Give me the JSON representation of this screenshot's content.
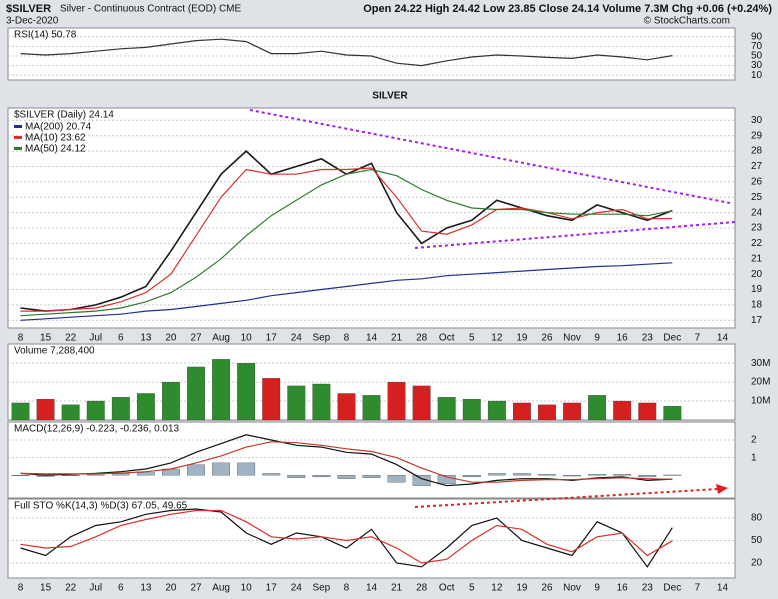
{
  "header": {
    "symbol": "$SILVER",
    "title": "Silver - Continuous Contract (EOD) CME",
    "date": "3-Dec-2020",
    "quote": "Open 24.22  High 24.42  Low 23.85  Close 24.14  Volume 7.3M  Chg +0.06 (+0.24%)",
    "copyright": "© StockCharts.com"
  },
  "chart_data": [
    {
      "type": "line",
      "title": "RSI(14) 50.78",
      "ylim": [
        0,
        100
      ],
      "yticks": [
        10,
        30,
        50,
        70,
        90
      ],
      "grid": true,
      "series": [
        {
          "color": "#333333",
          "values": [
            55,
            52,
            55,
            60,
            65,
            68,
            75,
            82,
            85,
            80,
            55,
            55,
            60,
            52,
            50,
            35,
            30,
            40,
            48,
            52,
            50,
            47,
            45,
            52,
            48,
            42,
            50.78,
            null,
            null
          ]
        }
      ]
    },
    {
      "type": "line",
      "title": "$SILVER (Daily) 24.14",
      "annotation": "SILVER",
      "color": "#1a1a1a",
      "categories": [
        "8",
        "15",
        "22",
        "Jul",
        "6",
        "13",
        "20",
        "27",
        "Aug",
        "10",
        "17",
        "24",
        "Sep",
        "8",
        "14",
        "21",
        "28",
        "Oct",
        "5",
        "12",
        "19",
        "26",
        "Nov",
        "9",
        "16",
        "23",
        "Dec",
        "7",
        "14"
      ],
      "values": [
        17.8,
        17.6,
        17.7,
        18.0,
        18.5,
        19.2,
        21.5,
        24.0,
        26.5,
        28.0,
        26.5,
        27.0,
        27.5,
        26.5,
        27.2,
        24.0,
        22.0,
        23.0,
        23.5,
        24.8,
        24.3,
        23.8,
        23.5,
        24.5,
        24.0,
        23.5,
        24.14,
        null,
        null
      ],
      "ylim": [
        16.5,
        30.8
      ],
      "yticks": [
        17,
        18,
        19,
        20,
        21,
        22,
        23,
        24,
        25,
        26,
        27,
        28,
        29,
        30
      ],
      "grid": true,
      "series": [
        {
          "name": "MA(200) 20.74",
          "color": "#1f2f8f",
          "values": [
            17.0,
            17.1,
            17.2,
            17.3,
            17.4,
            17.6,
            17.7,
            17.9,
            18.1,
            18.3,
            18.6,
            18.8,
            19.0,
            19.2,
            19.4,
            19.6,
            19.7,
            19.9,
            20.0,
            20.1,
            20.2,
            20.3,
            20.4,
            20.5,
            20.55,
            20.65,
            20.74,
            null,
            null
          ]
        },
        {
          "name": "MA(10) 23.62",
          "color": "#d9302c",
          "values": [
            17.6,
            17.6,
            17.7,
            17.8,
            18.2,
            18.8,
            20.0,
            22.5,
            25.0,
            26.8,
            26.5,
            26.5,
            26.8,
            26.8,
            26.9,
            25.0,
            22.8,
            22.6,
            23.2,
            24.2,
            24.3,
            24.0,
            23.6,
            24.0,
            24.2,
            23.6,
            23.62,
            null,
            null
          ]
        },
        {
          "name": "MA(50) 24.12",
          "color": "#2f7a2f",
          "values": [
            17.3,
            17.4,
            17.5,
            17.6,
            17.8,
            18.2,
            18.8,
            19.8,
            21.0,
            22.5,
            23.8,
            24.8,
            25.8,
            26.5,
            26.8,
            26.4,
            25.5,
            24.8,
            24.3,
            24.2,
            24.2,
            24.0,
            23.9,
            23.9,
            23.9,
            23.8,
            24.12,
            null,
            null
          ]
        }
      ]
    },
    {
      "type": "bar",
      "title": "Volume 7,288,400",
      "up_color": "#2e8b2e",
      "down_color": "#d62020",
      "ylim": [
        0,
        38000000
      ],
      "yticks": [
        {
          "value": 10000000,
          "label": "10M"
        },
        {
          "value": 20000000,
          "label": "20M"
        },
        {
          "value": 30000000,
          "label": "30M"
        }
      ],
      "grid": true,
      "values": [
        9000000,
        11000000,
        8000000,
        10000000,
        12000000,
        14000000,
        20000000,
        28000000,
        32000000,
        30000000,
        22000000,
        18000000,
        19000000,
        14000000,
        13000000,
        20000000,
        18000000,
        12000000,
        11000000,
        10000000,
        9000000,
        8000000,
        9000000,
        13000000,
        10000000,
        9000000,
        7288400,
        null,
        null
      ]
    },
    {
      "type": "line",
      "title": "MACD(12,26,9) -0.223, -0.236, 0.013",
      "ylim": [
        -1.3,
        2.8
      ],
      "yticks": [
        1,
        2
      ],
      "grid": true,
      "series": [
        {
          "type": "bar",
          "color": "#9fb3c2",
          "values": [
            0.0,
            -0.08,
            -0.02,
            0.02,
            0.08,
            0.15,
            0.35,
            0.6,
            0.7,
            0.7,
            0.1,
            -0.15,
            -0.1,
            -0.2,
            -0.15,
            -0.4,
            -0.6,
            -0.5,
            -0.1,
            0.1,
            0.1,
            0.05,
            -0.05,
            0.05,
            0.05,
            -0.1,
            0.013,
            null,
            null
          ]
        },
        {
          "color": "#111111",
          "values": [
            0.1,
            0.0,
            0.05,
            0.1,
            0.2,
            0.35,
            0.7,
            1.3,
            1.8,
            2.3,
            2.0,
            1.7,
            1.6,
            1.3,
            1.2,
            0.6,
            -0.2,
            -0.6,
            -0.5,
            -0.3,
            -0.2,
            -0.2,
            -0.3,
            -0.15,
            -0.1,
            -0.3,
            -0.223,
            null,
            null
          ]
        },
        {
          "color": "#c0392b",
          "values": [
            0.1,
            0.08,
            0.07,
            0.08,
            0.12,
            0.2,
            0.35,
            0.7,
            1.1,
            1.6,
            1.9,
            1.85,
            1.7,
            1.5,
            1.35,
            1.0,
            0.4,
            -0.1,
            -0.4,
            -0.4,
            -0.3,
            -0.25,
            -0.25,
            -0.2,
            -0.15,
            -0.2,
            -0.236,
            null,
            null
          ]
        }
      ]
    },
    {
      "type": "line",
      "title": "Full STO %K(14,3) %D(3) 67.05, 49.65",
      "ylim": [
        0,
        100
      ],
      "yticks": [
        20,
        50,
        80
      ],
      "grid": true,
      "categories": [
        "8",
        "15",
        "22",
        "Jul",
        "6",
        "13",
        "20",
        "27",
        "Aug",
        "10",
        "17",
        "24",
        "Sep",
        "8",
        "14",
        "21",
        "28",
        "Oct",
        "5",
        "12",
        "19",
        "26",
        "Nov",
        "9",
        "16",
        "23",
        "Dec",
        "7",
        "14"
      ],
      "series": [
        {
          "color": "#111111",
          "values": [
            40,
            30,
            55,
            70,
            75,
            85,
            90,
            92,
            88,
            60,
            45,
            60,
            55,
            40,
            65,
            20,
            15,
            40,
            70,
            80,
            50,
            40,
            30,
            75,
            60,
            15,
            67.05,
            null,
            null
          ]
        },
        {
          "color": "#d9302c",
          "values": [
            45,
            40,
            42,
            55,
            70,
            78,
            85,
            90,
            90,
            75,
            55,
            52,
            55,
            50,
            55,
            40,
            20,
            25,
            50,
            70,
            65,
            45,
            35,
            55,
            60,
            30,
            49.65,
            null,
            null
          ]
        }
      ]
    }
  ]
}
